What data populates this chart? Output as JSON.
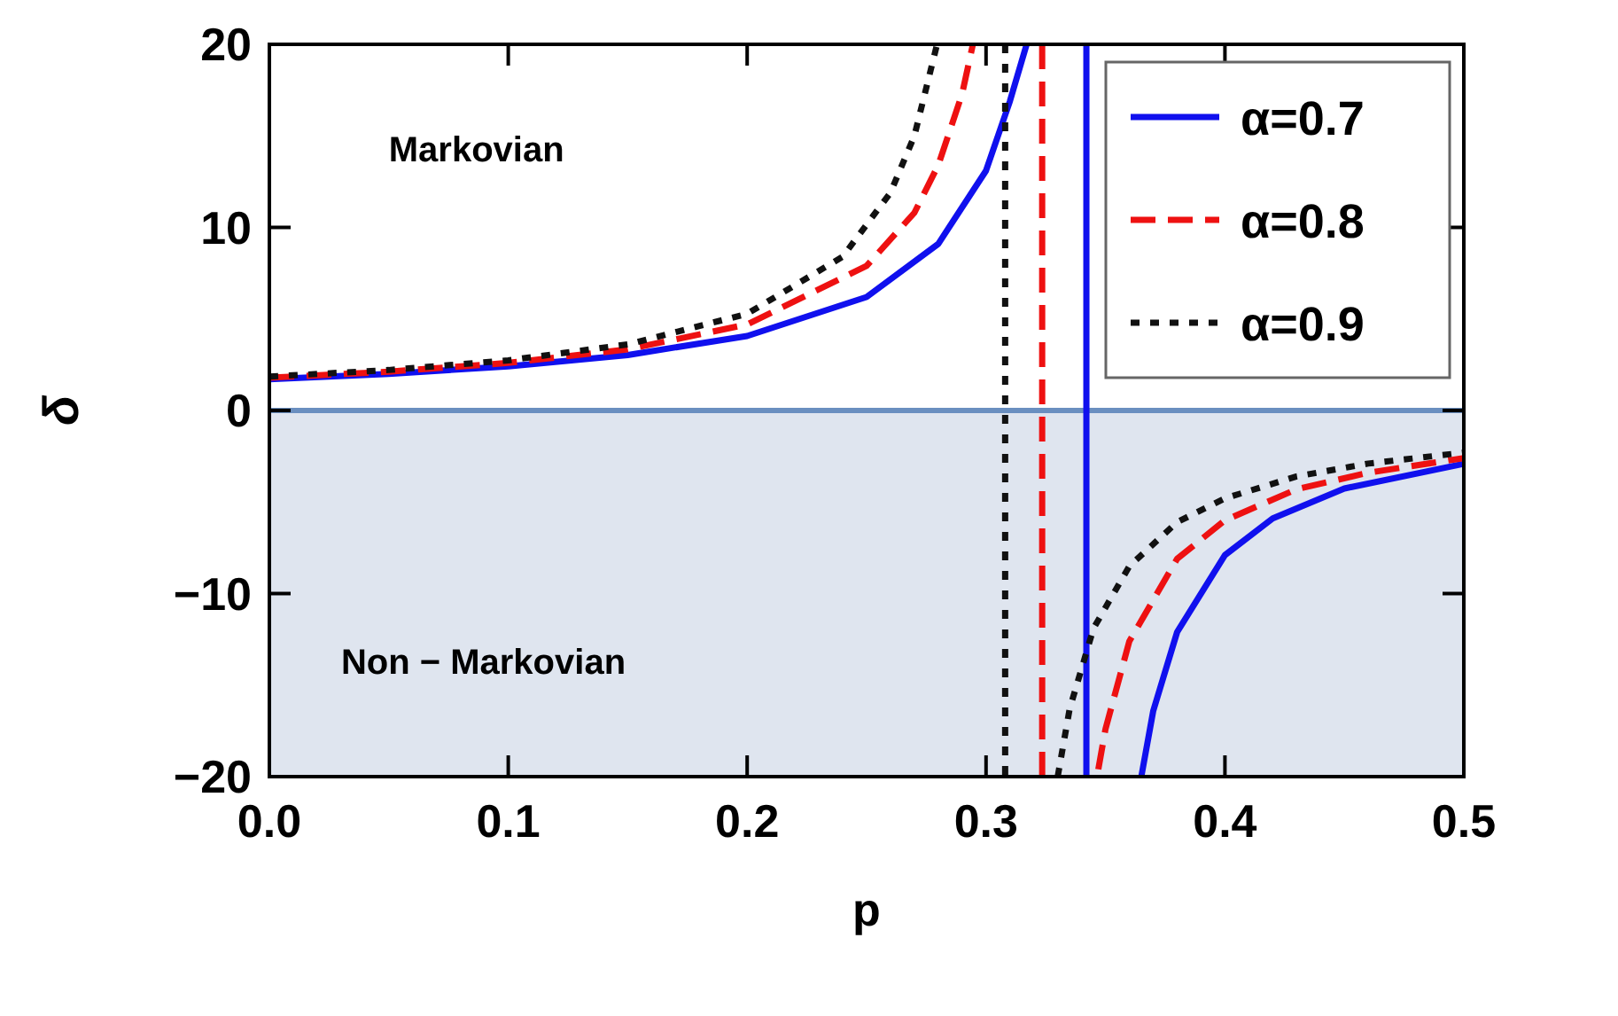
{
  "chart_data": {
    "type": "line",
    "xlabel": "p",
    "ylabel": "δ",
    "xlim": [
      0,
      0.5
    ],
    "ylim": [
      -20,
      20
    ],
    "xticks": [
      {
        "value": 0,
        "label": "0.0"
      },
      0.1,
      0.2,
      0.3,
      0.4,
      0.5
    ],
    "yticks": [
      {
        "value": -20,
        "label": "−20"
      },
      {
        "value": -10,
        "label": "−10"
      },
      0,
      10,
      20
    ],
    "grid": false,
    "legend": "top right",
    "bands": [
      {
        "axis": "y",
        "from": -20,
        "to": 0,
        "color": "#dfe5ef"
      }
    ],
    "ref_lines": [
      {
        "axis": "y",
        "value": 0,
        "color": "#6a8fc0",
        "line_style": "solid"
      }
    ],
    "annotations": [
      "Markovian",
      "Non − Markovian"
    ],
    "series": [
      {
        "name": "α=0.7",
        "color": "#1010ee",
        "line_style": "solid",
        "x": [
          0,
          0.05,
          0.1,
          0.15,
          0.2,
          0.25,
          0.28,
          0.3,
          0.31,
          0.317,
          0.33,
          0.342,
          0.342,
          0.355,
          0.365,
          0.37,
          0.38,
          0.4,
          0.42,
          0.45,
          0.5
        ],
        "values": [
          1.71,
          2.0,
          2.41,
          3.03,
          4.07,
          6.2,
          9.1,
          13.1,
          16.9,
          20,
          null,
          20,
          -20,
          null,
          -20,
          -16.4,
          -12.1,
          -7.9,
          -5.9,
          -4.26,
          -2.91
        ]
      },
      {
        "name": "α=0.8",
        "color": "#ee1111",
        "line_style": "dashed",
        "x": [
          0,
          0.05,
          0.1,
          0.15,
          0.2,
          0.25,
          0.27,
          0.28,
          0.29,
          0.2945,
          0.31,
          0.3235,
          0.3235,
          0.335,
          0.347,
          0.35,
          0.36,
          0.38,
          0.4,
          0.43,
          0.46,
          0.5
        ],
        "values": [
          1.79,
          2.12,
          2.6,
          3.34,
          4.7,
          7.9,
          10.8,
          13.4,
          17.3,
          20,
          null,
          20,
          -20,
          null,
          -19.6,
          -17.4,
          -12.6,
          -8.1,
          -6.0,
          -4.3,
          -3.4,
          -2.6
        ]
      },
      {
        "name": "α=0.9",
        "color": "#111111",
        "line_style": "dotted",
        "x": [
          0,
          0.05,
          0.1,
          0.15,
          0.2,
          0.24,
          0.26,
          0.27,
          0.2795,
          0.295,
          0.308,
          0.308,
          0.32,
          0.33,
          0.335,
          0.345,
          0.36,
          0.38,
          0.4,
          0.43,
          0.46,
          0.5
        ],
        "values": [
          1.85,
          2.21,
          2.74,
          3.61,
          5.28,
          8.4,
          11.9,
          15,
          20,
          null,
          20,
          -20,
          null,
          -20,
          -16.3,
          -11.9,
          -8.5,
          -6.1,
          -4.8,
          -3.6,
          -2.9,
          -2.3
        ]
      }
    ]
  }
}
